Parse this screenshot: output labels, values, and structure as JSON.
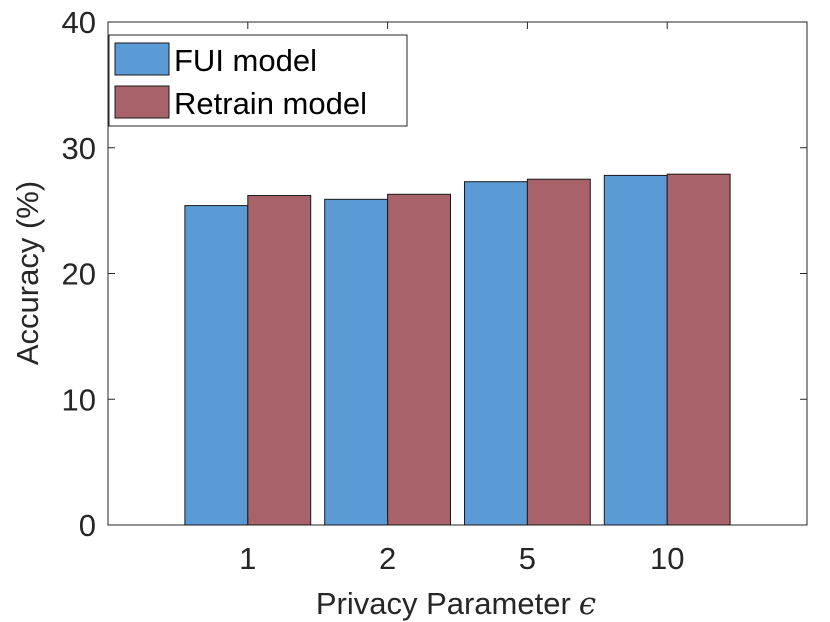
{
  "chart_data": {
    "type": "bar",
    "categories": [
      "1",
      "2",
      "5",
      "10"
    ],
    "series": [
      {
        "name": "FUI model",
        "values": [
          25.4,
          25.9,
          27.3,
          27.8
        ],
        "color": "#5b9bd5"
      },
      {
        "name": "Retrain model",
        "values": [
          26.2,
          26.3,
          27.5,
          27.9
        ],
        "color": "#a8636a"
      }
    ],
    "title": "",
    "xlabel": "Privacy Parameter",
    "xlabel_symbol": "ϵ",
    "ylabel": "Accuracy (%)",
    "ylim": [
      0,
      40
    ],
    "yticks": [
      "0",
      "10",
      "20",
      "30",
      "40"
    ],
    "grid": false,
    "legend_position": "top-left"
  }
}
